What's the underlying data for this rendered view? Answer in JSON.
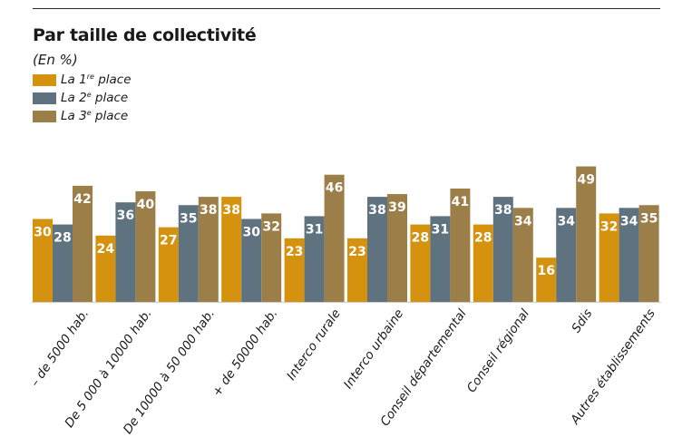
{
  "chart_data": {
    "type": "bar",
    "title": "Par taille de collectivité",
    "subtitle": "(En %)",
    "categories": [
      "– de 5000 hab.",
      "De 5 000 à 10000 hab.",
      "De 10000 à 50 000 hab.",
      "+ de 50000 hab.",
      "Interco rurale",
      "Interco urbaine",
      "Conseil départemental",
      "Conseil régional",
      "Sdis",
      "Autres établissements"
    ],
    "series": [
      {
        "name_base": "La 1",
        "name_sup": "re",
        "name_rest": " place",
        "color": "#d4920e",
        "values": [
          30,
          24,
          27,
          38,
          23,
          23,
          28,
          28,
          16,
          32
        ]
      },
      {
        "name_base": "La 2",
        "name_sup": "e",
        "name_rest": " place",
        "color": "#5e7280",
        "values": [
          28,
          36,
          35,
          30,
          31,
          38,
          31,
          38,
          34,
          34
        ]
      },
      {
        "name_base": "La 3",
        "name_sup": "e",
        "name_rest": " place",
        "color": "#9c7f48",
        "values": [
          42,
          40,
          38,
          32,
          46,
          39,
          41,
          34,
          49,
          35
        ]
      }
    ],
    "xlabel": "",
    "ylabel": "",
    "ylim": [
      0,
      60
    ],
    "legend": "top-left",
    "grid": false
  }
}
